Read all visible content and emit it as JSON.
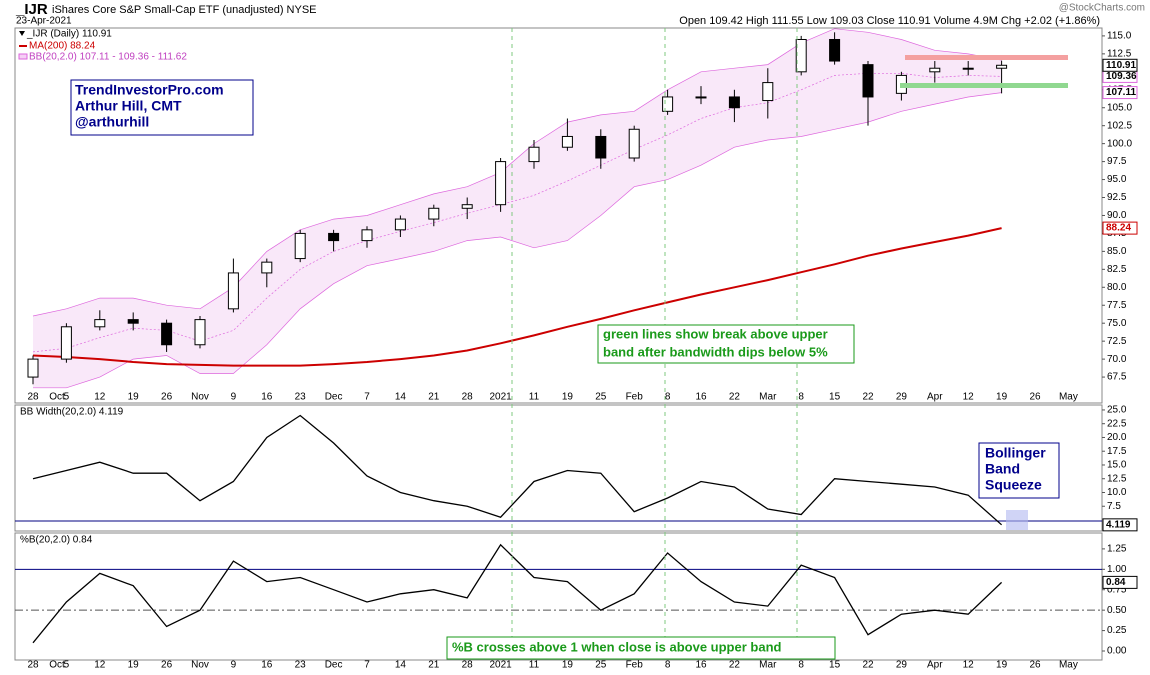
{
  "header": {
    "symbol": "_IJR",
    "name": "iShares Core S&P Small-Cap ETF (unadjusted) NYSE",
    "date": "23-Apr-2021",
    "quote": "Open 109.42 High 111.55 Low 109.03 Close 110.91 Volume 4.9M Chg +2.02 (+1.86%)",
    "source": "@StockCharts.com"
  },
  "chart_data": [
    {
      "type": "candlestick",
      "categories": [
        "28",
        "5",
        "12",
        "19",
        "26",
        "Nov",
        "9",
        "16",
        "23",
        "Dec",
        "7",
        "14",
        "21",
        "28",
        "2021",
        "11",
        "19",
        "25",
        "Feb",
        "8",
        "16",
        "22",
        "Mar",
        "8",
        "15",
        "22",
        "29",
        "Apr",
        "12",
        "19",
        "26",
        "May"
      ],
      "x_extra_label": "Oct",
      "series": [
        {
          "name": "_IJR (Daily) 110.91",
          "color": "#000000",
          "open": [
            67.5,
            70,
            74.5,
            75.5,
            75,
            72,
            77,
            82,
            84,
            87.5,
            86.5,
            88,
            89.5,
            91,
            91.5,
            97.5,
            99.5,
            101,
            98,
            104.5,
            106.5,
            106.5,
            106,
            110,
            114.5,
            111,
            107,
            110,
            110.5,
            110.5,
            null,
            null
          ],
          "high": [
            70.5,
            75,
            76.8,
            76.5,
            75.5,
            76,
            84,
            84,
            88,
            88,
            88.5,
            90,
            91.5,
            92.5,
            98,
            100.5,
            103.5,
            102,
            102.5,
            107.5,
            108,
            107.5,
            110.5,
            115,
            115.5,
            111.5,
            110,
            111.5,
            111.5,
            111.55,
            null,
            null
          ],
          "low": [
            66.5,
            69.5,
            74,
            74,
            71,
            71.5,
            76.5,
            80,
            83.5,
            85,
            85.5,
            87,
            88.5,
            89.5,
            90.5,
            96.5,
            99,
            96.5,
            97.5,
            104,
            105.5,
            103,
            103.5,
            109.5,
            111,
            102.5,
            106,
            108.5,
            109.5,
            107,
            null,
            null
          ],
          "close": [
            70,
            74.5,
            75.5,
            75,
            72,
            75.5,
            82,
            83.5,
            87.5,
            86.5,
            88,
            89.5,
            91,
            91.5,
            97.5,
            99.5,
            101,
            98,
            102,
            106.5,
            106.5,
            105,
            108.5,
            114.5,
            111.5,
            106.5,
            109.5,
            110.5,
            110.5,
            110.91,
            null,
            null
          ]
        }
      ],
      "overlays": [
        {
          "name": "MA(200) 88.24",
          "color": "#cc0000",
          "values": [
            70.5,
            70.3,
            70,
            69.6,
            69.3,
            69.2,
            69.1,
            69.1,
            69.1,
            69.3,
            69.6,
            70,
            70.5,
            71.2,
            72.2,
            73.3,
            74.5,
            75.6,
            76.8,
            77.9,
            79,
            80,
            81,
            82.1,
            83.2,
            84.4,
            85.4,
            86.3,
            87.2,
            88.24,
            null,
            null
          ]
        },
        {
          "name": "BB(20,2.0) 107.11 - 109.36 - 111.62",
          "color": "#dd66dd",
          "upper": [
            76,
            77,
            78.5,
            78.5,
            77.5,
            77,
            80,
            85,
            88,
            89.5,
            90,
            91.5,
            93,
            94,
            96,
            100,
            103,
            104,
            104.5,
            107.5,
            110,
            110.5,
            111,
            114,
            116,
            115.5,
            114.5,
            113,
            112.5,
            111.62,
            null,
            null
          ],
          "middle": [
            71,
            71.5,
            73,
            74.3,
            74,
            72.5,
            74,
            78.5,
            82.5,
            85,
            86.5,
            87.8,
            89,
            90.3,
            91.5,
            92.8,
            94.8,
            97,
            99.2,
            101.2,
            103.5,
            105,
            105.7,
            107.5,
            109.5,
            109.8,
            109.8,
            109.2,
            109.5,
            109.36,
            null,
            null
          ],
          "lower": [
            66,
            66,
            67.5,
            70,
            70.5,
            68,
            68,
            72,
            77,
            80.5,
            83,
            84,
            85,
            86.5,
            87,
            85.5,
            86.5,
            90,
            94,
            95,
            97,
            99.5,
            100.5,
            101,
            102,
            103,
            104.5,
            105.5,
            106.5,
            107.11,
            null,
            null
          ]
        }
      ],
      "ylim": [
        65.7,
        116.1
      ],
      "yticks": [
        {
          "value": 115,
          "label": "115.0"
        },
        {
          "value": 112.5,
          "label": "112.5"
        },
        {
          "value": 110,
          "label": "110.0"
        },
        {
          "value": 107.5,
          "label": "107.5"
        },
        {
          "value": 105,
          "label": "105.0"
        },
        {
          "value": 102.5,
          "label": "102.5"
        },
        {
          "value": 100,
          "label": "100.0"
        },
        {
          "value": 97.5,
          "label": "97.5"
        },
        {
          "value": 95,
          "label": "95.0"
        },
        {
          "value": 92.5,
          "label": "92.5"
        },
        {
          "value": 90,
          "label": "90.0"
        },
        {
          "value": 87.5,
          "label": "87.5"
        },
        {
          "value": 85,
          "label": "85.0"
        },
        {
          "value": 82.5,
          "label": "82.5"
        },
        {
          "value": 80,
          "label": "80.0"
        },
        {
          "value": 77.5,
          "label": "77.5"
        },
        {
          "value": 75,
          "label": "75.0"
        },
        {
          "value": 72.5,
          "label": "72.5"
        },
        {
          "value": 70,
          "label": "70.0"
        },
        {
          "value": 67.5,
          "label": "67.5"
        }
      ],
      "annotations": [
        "TrendInvestorPro.com",
        "Arthur Hill, CMT",
        "@arthurhill"
      ],
      "note": [
        "green lines show break above upper",
        "band after bandwidth dips below 5%"
      ]
    },
    {
      "type": "line",
      "series": [
        {
          "name": "BB Width(20,2.0) 4.119",
          "color": "#000000",
          "values": [
            12.5,
            14,
            15.5,
            13.5,
            13.5,
            8.5,
            12,
            20,
            24,
            19,
            13,
            10,
            8.5,
            7.5,
            5.5,
            12,
            14,
            13.5,
            6.5,
            9,
            12,
            11,
            7,
            6,
            12.5,
            12,
            11.5,
            11,
            9.5,
            4.119,
            null,
            null
          ]
        }
      ],
      "ylim": [
        3.0,
        25.9
      ],
      "yticks": [
        {
          "value": 25,
          "label": "25.0"
        },
        {
          "value": 22.5,
          "label": "22.5"
        },
        {
          "value": 20,
          "label": "20.0"
        },
        {
          "value": 17.5,
          "label": "17.5"
        },
        {
          "value": 15,
          "label": "15.0"
        },
        {
          "value": 12.5,
          "label": "12.5"
        },
        {
          "value": 10,
          "label": "10.0"
        },
        {
          "value": 7.5,
          "label": "7.5"
        }
      ],
      "annotations": [
        "Bollinger",
        "Band",
        "Squeeze"
      ]
    },
    {
      "type": "line",
      "categories": [
        "28",
        "5",
        "12",
        "19",
        "26",
        "Nov",
        "9",
        "16",
        "23",
        "Dec",
        "7",
        "14",
        "21",
        "28",
        "2021",
        "11",
        "19",
        "25",
        "Feb",
        "8",
        "16",
        "22",
        "Mar",
        "8",
        "15",
        "22",
        "29",
        "Apr",
        "12",
        "19",
        "26",
        "May"
      ],
      "x_extra_label": "Oct",
      "series": [
        {
          "name": "%B(20,2.0) 0.84",
          "color": "#000000",
          "values": [
            0.1,
            0.6,
            0.95,
            0.8,
            0.3,
            0.5,
            1.1,
            0.85,
            0.9,
            0.75,
            0.6,
            0.7,
            0.75,
            0.65,
            1.3,
            0.9,
            0.85,
            0.5,
            0.7,
            1.2,
            0.85,
            0.6,
            0.55,
            1.05,
            0.9,
            0.2,
            0.45,
            0.5,
            0.45,
            0.84,
            null,
            null
          ]
        }
      ],
      "ylim": [
        -0.11,
        1.42
      ],
      "yticks": [
        1.25,
        {
          "value": 1,
          "label": "1.00"
        },
        {
          "value": 0.75,
          "label": "0.75"
        },
        {
          "value": 0.5,
          "label": "0.50"
        },
        {
          "value": 0.25,
          "label": "0.25"
        },
        {
          "value": 0,
          "label": "0.00"
        }
      ],
      "note": "%B crosses above 1 when close is above upper band"
    }
  ]
}
